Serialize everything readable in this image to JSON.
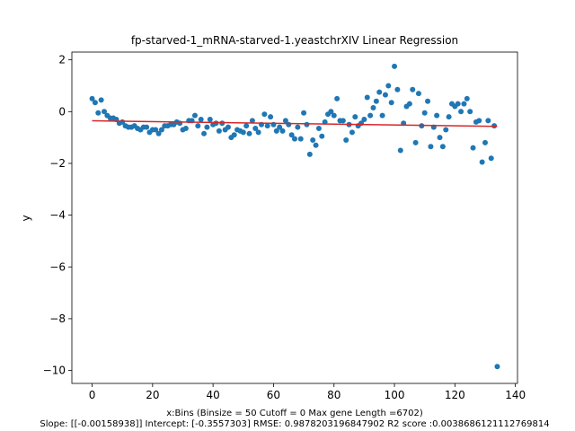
{
  "chart_data": {
    "type": "scatter",
    "title": "fp-starved-1_mRNA-starved-1.yeastchrXIV Linear Regression",
    "xlabel_line1": "x:Bins  (Binsize = 50 Cutoff = 0 Max gene Length =6702)",
    "xlabel_line2": "Slope: [[-0.00158938]] Intercept: [-0.3557303] RMSE: 0.9878203196847902 R2 score :0.0038686121112769814",
    "ylabel": "y",
    "xlim": [
      -6.7,
      140.7
    ],
    "ylim": [
      -10.5,
      2.3
    ],
    "xticks": [
      0,
      20,
      40,
      60,
      80,
      100,
      120,
      140
    ],
    "yticks": [
      2,
      0,
      -2,
      -4,
      -6,
      -8,
      -10
    ],
    "grid": false,
    "colors": {
      "points": "#1f77b4",
      "regression": "#d62728"
    },
    "regression": {
      "slope": -0.00158938,
      "intercept": -0.3557303,
      "x_range": [
        0,
        134
      ]
    },
    "points": [
      [
        0,
        0.5
      ],
      [
        1,
        0.35
      ],
      [
        2,
        -0.05
      ],
      [
        3,
        0.45
      ],
      [
        4,
        0.0
      ],
      [
        5,
        -0.15
      ],
      [
        6,
        -0.25
      ],
      [
        7,
        -0.25
      ],
      [
        8,
        -0.3
      ],
      [
        9,
        -0.45
      ],
      [
        10,
        -0.4
      ],
      [
        11,
        -0.55
      ],
      [
        12,
        -0.6
      ],
      [
        13,
        -0.6
      ],
      [
        14,
        -0.55
      ],
      [
        15,
        -0.65
      ],
      [
        16,
        -0.7
      ],
      [
        17,
        -0.6
      ],
      [
        18,
        -0.6
      ],
      [
        19,
        -0.8
      ],
      [
        20,
        -0.7
      ],
      [
        21,
        -0.7
      ],
      [
        22,
        -0.85
      ],
      [
        23,
        -0.7
      ],
      [
        24,
        -0.55
      ],
      [
        25,
        -0.55
      ],
      [
        26,
        -0.5
      ],
      [
        27,
        -0.5
      ],
      [
        28,
        -0.4
      ],
      [
        29,
        -0.45
      ],
      [
        30,
        -0.7
      ],
      [
        31,
        -0.65
      ],
      [
        32,
        -0.35
      ],
      [
        33,
        -0.35
      ],
      [
        34,
        -0.15
      ],
      [
        35,
        -0.55
      ],
      [
        36,
        -0.3
      ],
      [
        37,
        -0.85
      ],
      [
        38,
        -0.6
      ],
      [
        39,
        -0.3
      ],
      [
        40,
        -0.5
      ],
      [
        41,
        -0.45
      ],
      [
        42,
        -0.75
      ],
      [
        43,
        -0.45
      ],
      [
        44,
        -0.7
      ],
      [
        45,
        -0.6
      ],
      [
        46,
        -1.0
      ],
      [
        47,
        -0.9
      ],
      [
        48,
        -0.7
      ],
      [
        49,
        -0.75
      ],
      [
        50,
        -0.8
      ],
      [
        51,
        -0.55
      ],
      [
        52,
        -0.85
      ],
      [
        53,
        -0.35
      ],
      [
        54,
        -0.65
      ],
      [
        55,
        -0.8
      ],
      [
        56,
        -0.5
      ],
      [
        57,
        -0.1
      ],
      [
        58,
        -0.55
      ],
      [
        59,
        -0.2
      ],
      [
        60,
        -0.5
      ],
      [
        61,
        -0.75
      ],
      [
        62,
        -0.6
      ],
      [
        63,
        -0.75
      ],
      [
        64,
        -0.35
      ],
      [
        65,
        -0.5
      ],
      [
        66,
        -0.9
      ],
      [
        67,
        -1.05
      ],
      [
        68,
        -0.6
      ],
      [
        69,
        -1.05
      ],
      [
        70,
        -0.05
      ],
      [
        71,
        -0.5
      ],
      [
        72,
        -1.65
      ],
      [
        73,
        -1.1
      ],
      [
        74,
        -1.3
      ],
      [
        75,
        -0.65
      ],
      [
        76,
        -0.95
      ],
      [
        77,
        -0.4
      ],
      [
        78,
        -0.1
      ],
      [
        79,
        0.0
      ],
      [
        80,
        -0.15
      ],
      [
        81,
        0.5
      ],
      [
        82,
        -0.35
      ],
      [
        83,
        -0.35
      ],
      [
        84,
        -1.1
      ],
      [
        85,
        -0.5
      ],
      [
        86,
        -0.8
      ],
      [
        87,
        -0.2
      ],
      [
        88,
        -0.55
      ],
      [
        89,
        -0.45
      ],
      [
        90,
        -0.3
      ],
      [
        91,
        0.55
      ],
      [
        92,
        -0.15
      ],
      [
        93,
        0.15
      ],
      [
        94,
        0.4
      ],
      [
        95,
        0.75
      ],
      [
        96,
        -0.15
      ],
      [
        97,
        0.65
      ],
      [
        98,
        1.0
      ],
      [
        99,
        0.35
      ],
      [
        100,
        1.75
      ],
      [
        101,
        0.85
      ],
      [
        102,
        -1.5
      ],
      [
        103,
        -0.45
      ],
      [
        104,
        0.2
      ],
      [
        105,
        0.3
      ],
      [
        106,
        0.85
      ],
      [
        107,
        -1.2
      ],
      [
        108,
        0.7
      ],
      [
        109,
        -0.55
      ],
      [
        110,
        -0.05
      ],
      [
        111,
        0.4
      ],
      [
        112,
        -1.35
      ],
      [
        113,
        -0.6
      ],
      [
        114,
        -0.15
      ],
      [
        115,
        -1.0
      ],
      [
        116,
        -1.35
      ],
      [
        117,
        -0.7
      ],
      [
        118,
        -0.2
      ],
      [
        119,
        0.3
      ],
      [
        120,
        0.2
      ],
      [
        121,
        0.3
      ],
      [
        122,
        0.0
      ],
      [
        123,
        0.3
      ],
      [
        124,
        0.5
      ],
      [
        125,
        0.0
      ],
      [
        126,
        -1.4
      ],
      [
        127,
        -0.4
      ],
      [
        128,
        -0.35
      ],
      [
        129,
        -1.95
      ],
      [
        130,
        -1.2
      ],
      [
        131,
        -0.35
      ],
      [
        132,
        -1.8
      ],
      [
        133,
        -0.55
      ],
      [
        134,
        -9.85
      ]
    ]
  }
}
